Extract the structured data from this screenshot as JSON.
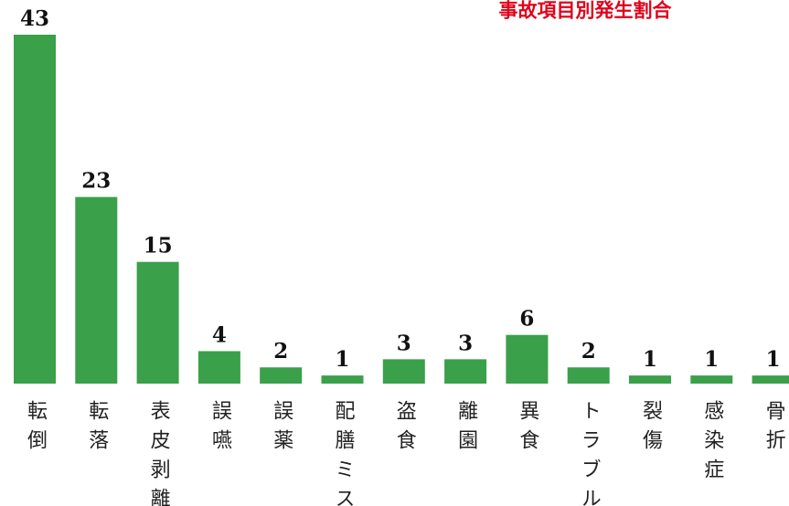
{
  "chart_data": {
    "type": "bar",
    "title": "事故項目別発生割合",
    "categories": [
      "転倒",
      "転落",
      "表皮剥離",
      "誤嚥",
      "誤薬",
      "配膳ミス",
      "盗食",
      "離園",
      "異食",
      "トラブル",
      "裂傷",
      "感染症",
      "骨折"
    ],
    "values": [
      43,
      23,
      15,
      4,
      2,
      1,
      3,
      3,
      6,
      2,
      1,
      1,
      1
    ],
    "color": "#3aa04a"
  }
}
